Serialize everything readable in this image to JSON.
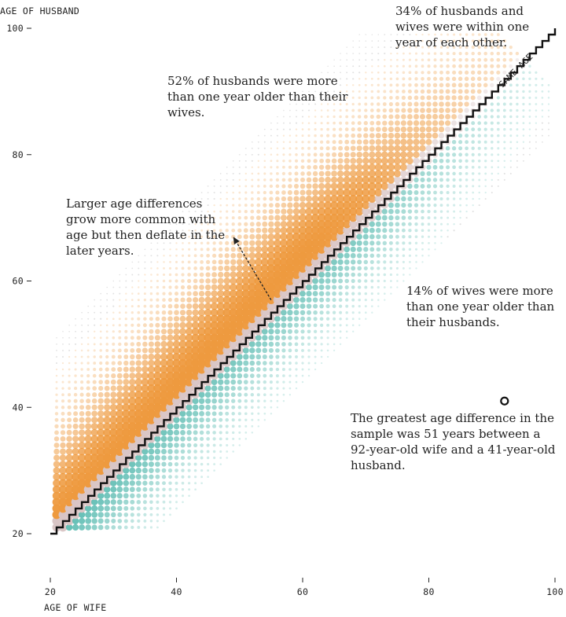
{
  "chart_data": {
    "type": "scatter",
    "xlabel": "AGE OF WIFE",
    "ylabel": "AGE OF HUSBAND",
    "xlim": [
      20,
      100
    ],
    "ylim": [
      20,
      100
    ],
    "x_ticks": [
      20,
      40,
      60,
      80,
      100
    ],
    "y_ticks": [
      20,
      40,
      60,
      80,
      100
    ],
    "diagonal_label": "SAME AGE",
    "series": [],
    "colors": {
      "husband_older": "#ee9a3f",
      "within_one_year": "#d9c5c5",
      "wife_older": "#5cbcb2",
      "diagonal": "#111111"
    },
    "outlier": {
      "wife_age": 92,
      "husband_age": 41
    },
    "arrow": {
      "from": [
        55,
        57
      ],
      "to": [
        49,
        67
      ]
    },
    "annotations": [
      {
        "id": "within-one-year",
        "text": "34% of husbands and wives were within one year of each other."
      },
      {
        "id": "husband-older",
        "text": "52% of husbands were more than one year older than their wives."
      },
      {
        "id": "larger-differences",
        "text": "Larger age differences grow more common with age but then deflate in the later years."
      },
      {
        "id": "wife-older",
        "text": "14% of wives were more than one year older than their husbands."
      },
      {
        "id": "greatest-difference",
        "text": "The greatest age difference in the sample was 51 years between a 92-year-old wife and a 41-year-old husband."
      }
    ]
  }
}
